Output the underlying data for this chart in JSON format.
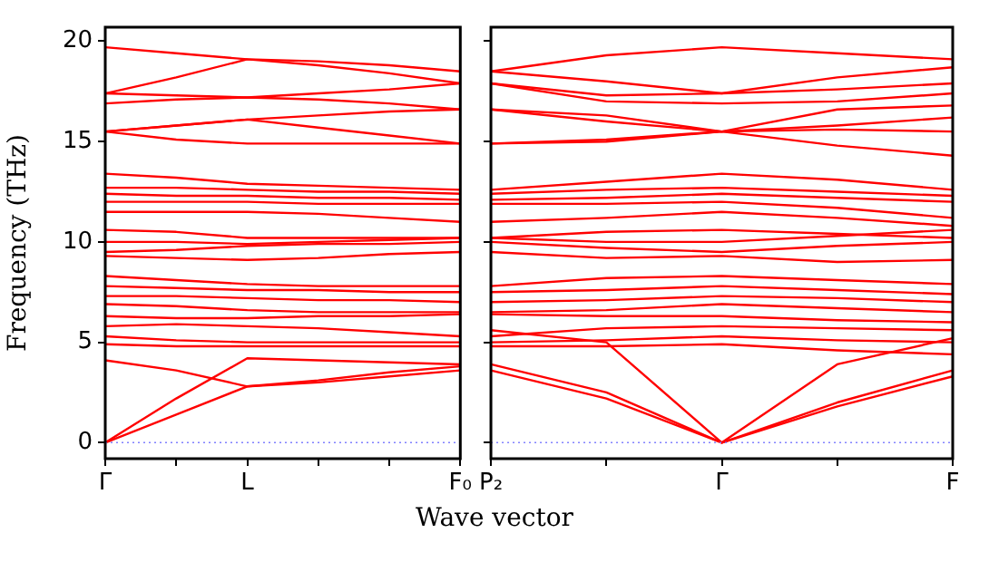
{
  "chart_data": [
    {
      "type": "line",
      "xlabel": "Wave vector",
      "ylabel": "Frequency (THz)",
      "categories": [
        "Γ",
        null,
        "L",
        null,
        null,
        "F₀"
      ],
      "ylim": [
        -0.8,
        20.7
      ],
      "yticks": [
        0,
        5,
        10,
        15,
        20
      ],
      "ref_lines": [
        {
          "axis": "y",
          "value": 0,
          "color": "#8080ff",
          "line_style": "dotted"
        }
      ],
      "series": [
        {
          "color": "#ff0000",
          "values": [
            19.7,
            19.4,
            19.1,
            19.0,
            18.8,
            18.5
          ]
        },
        {
          "color": "#ff0000",
          "values": [
            17.4,
            18.2,
            19.1,
            18.8,
            18.4,
            17.9
          ]
        },
        {
          "color": "#ff0000",
          "values": [
            17.4,
            17.3,
            17.2,
            17.4,
            17.6,
            17.9
          ]
        },
        {
          "color": "#ff0000",
          "values": [
            16.9,
            17.1,
            17.2,
            17.1,
            16.9,
            16.6
          ]
        },
        {
          "color": "#ff0000",
          "values": [
            15.5,
            15.8,
            16.1,
            16.3,
            16.5,
            16.6
          ]
        },
        {
          "color": "#ff0000",
          "values": [
            15.5,
            15.8,
            16.1,
            15.7,
            15.3,
            14.9
          ]
        },
        {
          "color": "#ff0000",
          "values": [
            15.5,
            15.1,
            14.9,
            14.9,
            14.9,
            14.9
          ]
        },
        {
          "color": "#ff0000",
          "values": [
            13.4,
            13.2,
            12.9,
            12.8,
            12.7,
            12.6
          ]
        },
        {
          "color": "#ff0000",
          "values": [
            12.7,
            12.7,
            12.6,
            12.5,
            12.5,
            12.4
          ]
        },
        {
          "color": "#ff0000",
          "values": [
            12.4,
            12.3,
            12.3,
            12.2,
            12.2,
            12.1
          ]
        },
        {
          "color": "#ff0000",
          "values": [
            12.0,
            12.0,
            12.0,
            11.9,
            11.9,
            11.9
          ]
        },
        {
          "color": "#ff0000",
          "values": [
            11.5,
            11.5,
            11.5,
            11.4,
            11.2,
            11.0
          ]
        },
        {
          "color": "#ff0000",
          "values": [
            10.6,
            10.5,
            10.2,
            10.2,
            10.2,
            10.2
          ]
        },
        {
          "color": "#ff0000",
          "values": [
            10.0,
            10.0,
            9.9,
            10.0,
            10.1,
            10.2
          ]
        },
        {
          "color": "#ff0000",
          "values": [
            9.5,
            9.6,
            9.8,
            9.9,
            9.9,
            10.0
          ]
        },
        {
          "color": "#ff0000",
          "values": [
            9.3,
            9.2,
            9.1,
            9.2,
            9.4,
            9.5
          ]
        },
        {
          "color": "#ff0000",
          "values": [
            8.3,
            8.1,
            7.9,
            7.8,
            7.8,
            7.8
          ]
        },
        {
          "color": "#ff0000",
          "values": [
            7.8,
            7.7,
            7.6,
            7.6,
            7.5,
            7.5
          ]
        },
        {
          "color": "#ff0000",
          "values": [
            7.3,
            7.3,
            7.2,
            7.1,
            7.1,
            7.0
          ]
        },
        {
          "color": "#ff0000",
          "values": [
            6.9,
            6.8,
            6.6,
            6.5,
            6.5,
            6.5
          ]
        },
        {
          "color": "#ff0000",
          "values": [
            6.3,
            6.2,
            6.2,
            6.3,
            6.3,
            6.4
          ]
        },
        {
          "color": "#ff0000",
          "values": [
            5.8,
            5.9,
            5.8,
            5.7,
            5.5,
            5.3
          ]
        },
        {
          "color": "#ff0000",
          "values": [
            5.3,
            5.1,
            5.0,
            5.0,
            5.0,
            5.0
          ]
        },
        {
          "color": "#ff0000",
          "values": [
            4.9,
            4.8,
            4.8,
            4.8,
            4.8,
            4.8
          ]
        },
        {
          "color": "#ff0000",
          "values": [
            4.1,
            3.6,
            2.8,
            3.0,
            3.3,
            3.6
          ]
        },
        {
          "color": "#ff0000",
          "values": [
            0,
            1.4,
            2.8,
            3.1,
            3.5,
            3.8
          ]
        },
        {
          "color": "#ff0000",
          "values": [
            0,
            2.2,
            4.2,
            4.1,
            4.0,
            3.9
          ]
        }
      ]
    },
    {
      "type": "line",
      "categories": [
        "P₂",
        null,
        "Γ",
        null,
        "F"
      ],
      "ylim": [
        -0.8,
        20.7
      ],
      "yticks": [
        0,
        5,
        10,
        15,
        20
      ],
      "tick_labels": "x",
      "ref_lines": [
        {
          "axis": "y",
          "value": 0,
          "color": "#8080ff",
          "line_style": "dotted"
        }
      ],
      "series": [
        {
          "color": "#ff0000",
          "values": [
            18.5,
            19.3,
            19.7,
            19.4,
            19.1
          ]
        },
        {
          "color": "#ff0000",
          "values": [
            18.5,
            18.0,
            17.4,
            18.2,
            18.7
          ]
        },
        {
          "color": "#ff0000",
          "values": [
            17.9,
            17.3,
            17.4,
            17.6,
            17.9
          ]
        },
        {
          "color": "#ff0000",
          "values": [
            17.9,
            17.0,
            16.9,
            17.0,
            17.4
          ]
        },
        {
          "color": "#ff0000",
          "values": [
            16.6,
            16.3,
            15.5,
            16.6,
            16.8
          ]
        },
        {
          "color": "#ff0000",
          "values": [
            16.6,
            16.0,
            15.5,
            15.8,
            16.2
          ]
        },
        {
          "color": "#ff0000",
          "values": [
            14.9,
            15.1,
            15.5,
            15.6,
            15.5
          ]
        },
        {
          "color": "#ff0000",
          "values": [
            14.9,
            15.0,
            15.5,
            14.8,
            14.3
          ]
        },
        {
          "color": "#ff0000",
          "values": [
            12.6,
            13.0,
            13.4,
            13.1,
            12.6
          ]
        },
        {
          "color": "#ff0000",
          "values": [
            12.4,
            12.6,
            12.7,
            12.5,
            12.3
          ]
        },
        {
          "color": "#ff0000",
          "values": [
            12.1,
            12.2,
            12.4,
            12.2,
            12.0
          ]
        },
        {
          "color": "#ff0000",
          "values": [
            11.9,
            11.9,
            12.0,
            11.7,
            11.2
          ]
        },
        {
          "color": "#ff0000",
          "values": [
            11.0,
            11.2,
            11.5,
            11.2,
            10.8
          ]
        },
        {
          "color": "#ff0000",
          "values": [
            10.2,
            10.5,
            10.6,
            10.4,
            10.2
          ]
        },
        {
          "color": "#ff0000",
          "values": [
            10.2,
            10.0,
            10.0,
            10.3,
            10.6
          ]
        },
        {
          "color": "#ff0000",
          "values": [
            10.0,
            9.7,
            9.5,
            9.8,
            10.0
          ]
        },
        {
          "color": "#ff0000",
          "values": [
            9.5,
            9.2,
            9.3,
            9.0,
            9.1
          ]
        },
        {
          "color": "#ff0000",
          "values": [
            7.8,
            8.2,
            8.3,
            8.1,
            7.9
          ]
        },
        {
          "color": "#ff0000",
          "values": [
            7.5,
            7.6,
            7.8,
            7.6,
            7.4
          ]
        },
        {
          "color": "#ff0000",
          "values": [
            7.0,
            7.1,
            7.3,
            7.2,
            7.0
          ]
        },
        {
          "color": "#ff0000",
          "values": [
            6.5,
            6.6,
            6.9,
            6.7,
            6.5
          ]
        },
        {
          "color": "#ff0000",
          "values": [
            6.4,
            6.3,
            6.3,
            6.1,
            6.0
          ]
        },
        {
          "color": "#ff0000",
          "values": [
            5.3,
            5.7,
            5.8,
            5.7,
            5.6
          ]
        },
        {
          "color": "#ff0000",
          "values": [
            5.0,
            5.1,
            5.3,
            5.1,
            5.0
          ]
        },
        {
          "color": "#ff0000",
          "values": [
            4.8,
            4.8,
            4.9,
            4.6,
            4.4
          ]
        },
        {
          "color": "#ff0000",
          "values": [
            3.6,
            2.2,
            0,
            1.8,
            3.3
          ]
        },
        {
          "color": "#ff0000",
          "values": [
            3.9,
            2.5,
            0,
            2.0,
            3.6
          ]
        },
        {
          "color": "#ff0000",
          "values": [
            5.6,
            5.0,
            0,
            3.9,
            5.2
          ]
        }
      ]
    }
  ]
}
